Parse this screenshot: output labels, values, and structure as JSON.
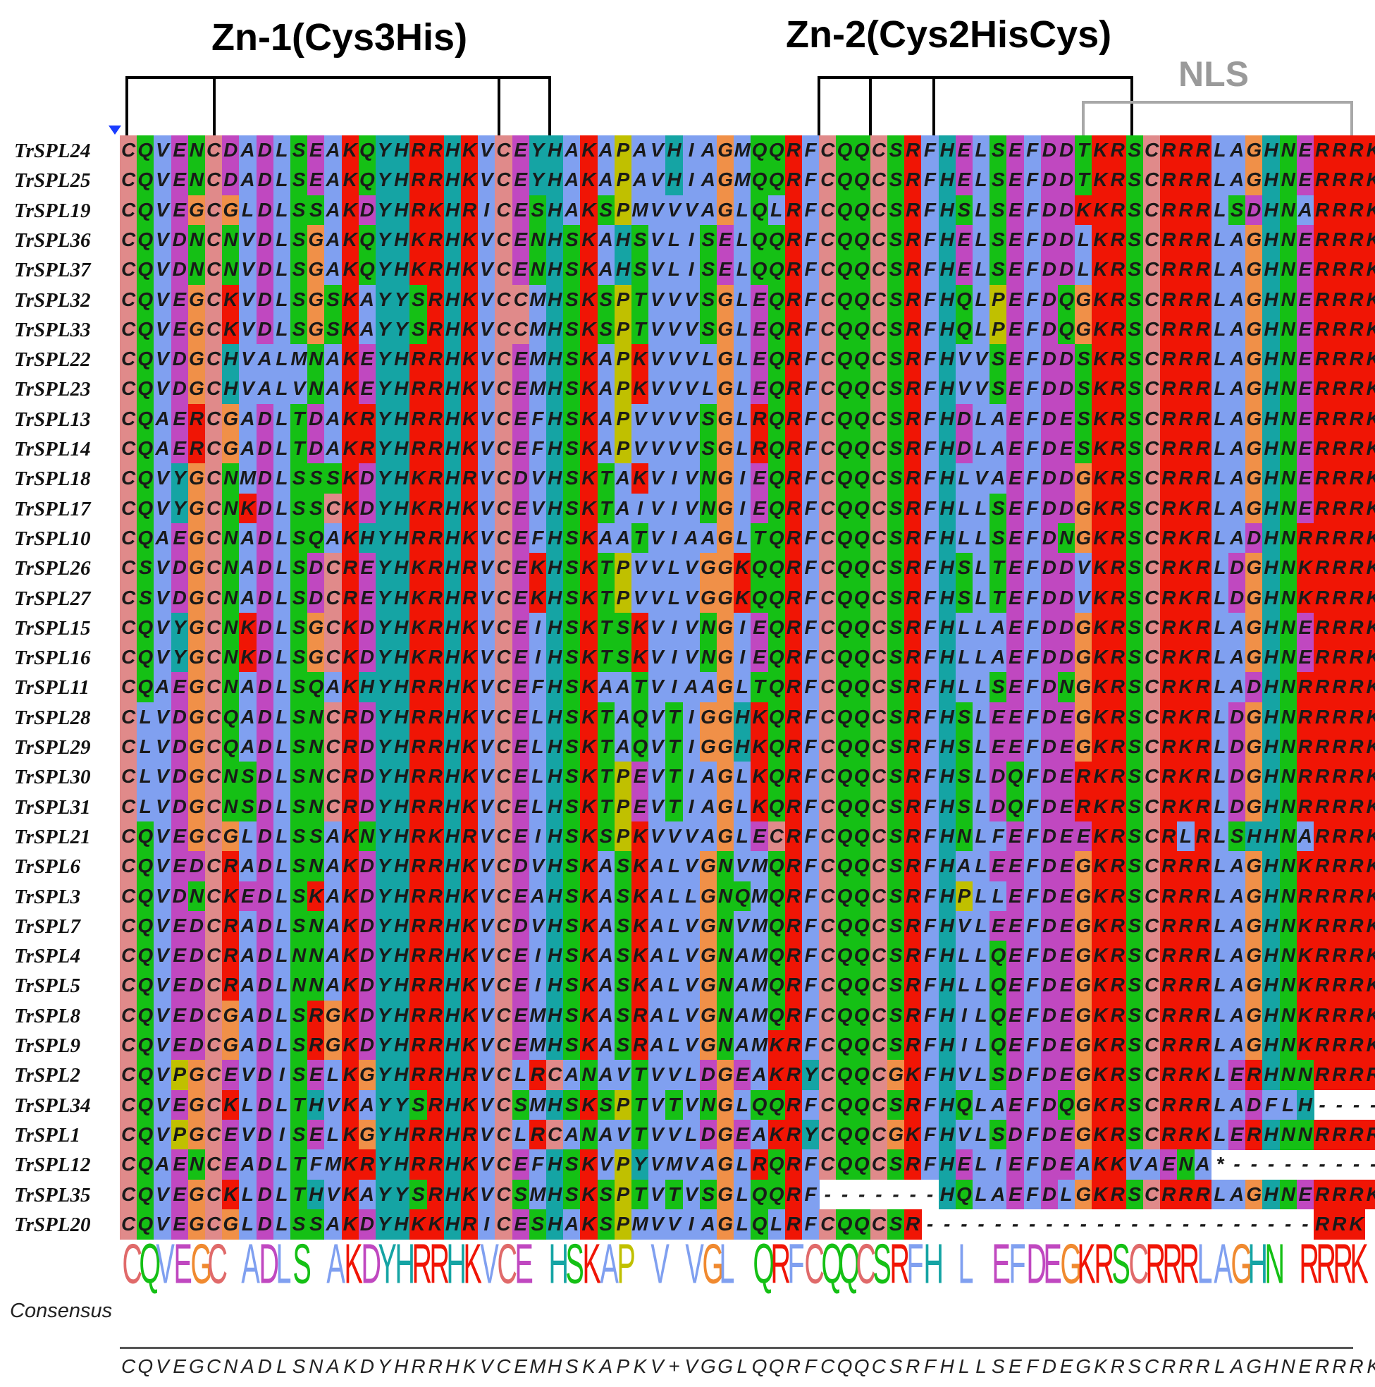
{
  "labels": {
    "zn1": "Zn-1(Cys3His)",
    "zn2": "Zn-2(Cys2HisCys)",
    "nls": "NLS",
    "consensus": "Consensus"
  },
  "sequences": [
    {
      "name": "TrSPL24",
      "seq": "CQVENCDADLSEAKQYHRRHKVCEYHAKAPAVHIAGMQQRFCQQCSRFHELSEFDDTKRSCRRRLAGHNERRRK"
    },
    {
      "name": "TrSPL25",
      "seq": "CQVENCDADLSEAKQYHRRHKVCEYHAKAPAVHIAGMQQRFCQQCSRFHELSEFDDTKRSCRRRLAGHNERRRK"
    },
    {
      "name": "TrSPL19",
      "seq": "CQVEGCGLDLSSAKDYHRKHRICESHAKSPMVVVAGLQLRFCQQCSRFHSLSEFDDKKRSCRRRLSDHNARRRK"
    },
    {
      "name": "TrSPL36",
      "seq": "CQVDNCNVDLSGAKQYHKRHKVCENHSKAHSVLISELQQRFCQQCSRFHELSEFDDLKRSCRRRLAGHNERRRK"
    },
    {
      "name": "TrSPL37",
      "seq": "CQVDNCNVDLSGAKQYHKRHKVCENHSKAHSVLISELQQRFCQQCSRFHELSEFDDLKRSCRRRLAGHNERRRK"
    },
    {
      "name": "TrSPL32",
      "seq": "CQVEGCKVDLSGSKAYYSRHKVCCMHSKSPTVVVSGLEQRFCQQCSRFHQLPEFDQGKRSCRRRLAGHNERRRK"
    },
    {
      "name": "TrSPL33",
      "seq": "CQVEGCKVDLSGSKAYYSRHKVCCMHSKSPTVVVSGLEQRFCQQCSRFHQLPEFDQGKRSCRRRLAGHNERRRK"
    },
    {
      "name": "TrSPL22",
      "seq": "CQVDGCHVALMNAKEYHRRHKVCEMHSKAPKVVVLGLEQRFCQQCSRFHVVSEFDDSKRSCRRRLAGHNERRRK"
    },
    {
      "name": "TrSPL23",
      "seq": "CQVDGCHVALVNAKEYHRRHKVCEMHSKAPKVVVLGLEQRFCQQCSRFHVVSEFDDSKRSCRRRLAGHNERRRK"
    },
    {
      "name": "TrSPL13",
      "seq": "CQAERCGADLTDAKRYHRRHKVCEFHSKAPVVVVSGLRQRFCQQCSRFHDLAEFDESKRSCRRRLAGHNERRRK"
    },
    {
      "name": "TrSPL14",
      "seq": "CQAERCGADLTDAKRYHRRHKVCEFHSKAPVVVVSGLRQRFCQQCSRFHDLAEFDESKRSCRRRLAGHNERRRK"
    },
    {
      "name": "TrSPL18",
      "seq": "CQVYGCNMDLSSSKDYHKRHRVCDVHSKTAKVIVNGIEQRFCQQCSRFHLVAEFDDGKRSCRRRLAGHNERRRK"
    },
    {
      "name": "TrSPL17",
      "seq": "CQVYGCNKDLSSCKDYHKRHKVCEVHSKTAIVIVNGIEQRFCQQCSRFHLLSEFDDGKRSCRKRLAGHNERRRK"
    },
    {
      "name": "TrSPL10",
      "seq": "CQAEGCNADLSQAKHYHRRHKVCEFHSKAATVIAAGLTQRFCQQCSRFHLLSEFDNGKRSCRKRLADHNRRRRK"
    },
    {
      "name": "TrSPL26",
      "seq": "CSVDGCNADLSDCREYHKRHRVCEKHSKTPVVLVGGKQQRFCQQCSRFHSLTEFDDVKRSCRKRLDGHNKRRRK"
    },
    {
      "name": "TrSPL27",
      "seq": "CSVDGCNADLSDCREYHKRHRVCEKHSKTPVVLVGGKQQRFCQQCSRFHSLTEFDDVKRSCRKRLDGHNKRRRK"
    },
    {
      "name": "TrSPL15",
      "seq": "CQVYGCNKDLSGCKDYHKRHKVCEIHSKTSKVIVNGIEQRFCQQCSRFHLLAEFDDGKRSCRKRLAGHNERRRK"
    },
    {
      "name": "TrSPL16",
      "seq": "CQVYGCNKDLSGCKDYHKRHKVCEIHSKTSKVIVNGIEQRFCQQCSRFHLLAEFDDGKRSCRKRLAGHNERRRK"
    },
    {
      "name": "TrSPL11",
      "seq": "CQAEGCNADLSQAKHYHRRHKVCEFHSKAATVIAAGLTQRFCQQCSRFHLLSEFDNGKRSCRKRLADHNRRRRK"
    },
    {
      "name": "TrSPL28",
      "seq": "CLVDGCQADLSNCRDYHRRHKVCELHSKTAQVTIGGHKQRFCQQCSRFHSLEEFDEGKRSCRKRLDGHNRRRRK"
    },
    {
      "name": "TrSPL29",
      "seq": "CLVDGCQADLSNCRDYHRRHKVCELHSKTAQVTIGGHKQRFCQQCSRFHSLEEFDEGKRSCRKRLDGHNRRRRK"
    },
    {
      "name": "TrSPL30",
      "seq": "CLVDGCNSDLSNCRDYHRRHKVCELHSKTPEVTIAGLKQRFCQQCSRFHSLDQFDERKRSCRKRLDGHNRRRRK"
    },
    {
      "name": "TrSPL31",
      "seq": "CLVDGCNSDLSNCRDYHRRHKVCELHSKTPEVTIAGLKQRFCQQCSRFHSLDQFDERKRSCRKRLDGHNRRRRK"
    },
    {
      "name": "TrSPL21",
      "seq": "CQVEGCGLDLSSAKNYHRKHRVCEIHSKSPKVVVAGLECRFCQQCSRFHNLFEFDEEKRSCRLRLSHHNARRRK"
    },
    {
      "name": "TrSPL6",
      "seq": "CQVEDCRADLSNAKDYHRRHKVCDVHSKASKALVGNVMQRFCQQCSRFHALEEFDEGKRSCRRRLAGHNKRRRK"
    },
    {
      "name": "TrSPL3",
      "seq": "CQVDNCKEDLSKAKDYHRRHKVCEAHSKASKALLGNQMQRFCQQCSRFHPLLEFDEGKRSCRRRLAGHNRRRRK"
    },
    {
      "name": "TrSPL7",
      "seq": "CQVEDCRADLSNAKDYHRRHKVCDVHSKASKALVGNVMQRFCQQCSRFHVLEEFDEGKRSCRRRLAGHNKRRRK"
    },
    {
      "name": "TrSPL4",
      "seq": "CQVEDCRADLNNAKDYHRRHKVCEIHSKASKALVGNAMQRFCQQCSRFHLLQEFDEGKRSCRRRLAGHNKRRRK"
    },
    {
      "name": "TrSPL5",
      "seq": "CQVEDCRADLNNAKDYHRRHKVCEIHSKASKALVGNAMQRFCQQCSRFHLLQEFDEGKRSCRRRLAGHNKRRRK"
    },
    {
      "name": "TrSPL8",
      "seq": "CQVEDCGADLSRGKDYHRRHKVCEMHSKASRALVGNAMQRFCQQCSRFHILQEFDEGKRSCRRRLAGHNKRRRK"
    },
    {
      "name": "TrSPL9",
      "seq": "CQVEDCGADLSRGKDYHRRHKVCEMHSKASRALVGNAMKRFCQQCSRFHILQEFDEGKRSCRRRLAGHNKRRRK"
    },
    {
      "name": "TrSPL2",
      "seq": "CQVPGCEVDISELKGYHRRHRVCLRCANAVTVVLDGEAKRYCQQCGKFHVLSDFDEGKRSCRRKLERHNNRRRR"
    },
    {
      "name": "TrSPL34",
      "seq": "CQVEGCKLDLTHVKAYYSRHKVCSMHSKSPTVTVNGLQQRFCQQCSRFHQLAEFDQGKRSCRRRLADFLH----"
    },
    {
      "name": "TrSPL1",
      "seq": "CQVPGCEVDISELKGYHRRHRVCLRCANAVTVVLDGEAKRYCQQCGKFHVLSDFDEGKRSCRRKLERHNNRRRR"
    },
    {
      "name": "TrSPL12",
      "seq": "CQAENCEADLTFMKRYHRRHKVCEFHSKVPYVMVAGLRQRFCQQCSRFHELIEFDEAKKVAENA*---------"
    },
    {
      "name": "TrSPL35",
      "seq": "CQVEGCKLDLTHVKAYYSRHKVCSMHSKSPTVTVSGLQQRF-------HQLAEFDLGKRSCRRRLAGHNERRRK"
    },
    {
      "name": "TrSPL20",
      "seq": "CQVEGCGLDLSSAKDYHKKHRICESHAKSPMVVIAGLQLRFCQQCSR-----------------------RRK"
    }
  ],
  "consensus_logo": "CQVEGC ADLS AKDYHRRHKVCE HSKAP V VGL QRFCQQCSRFH L EFDEGKRSCRRRLAGHN RRRK",
  "consensus_seq": "CQVEGCNADLSNAKDYHRRHKVCEMHSKAPKV+VGGLQQRFCQQCSRFHLLSEFDEGKRSCRRRLAGHNERRRK",
  "colors": {
    "C": "#e08a8a",
    "hydrophobic": "#80a0f0",
    "acidic": "#c048c0",
    "basic": "#f01505",
    "polar": "#15c015",
    "aromatic": "#15a4a4",
    "G": "#f09048",
    "P": "#c0c000",
    "text": "#1a1a1a",
    "bracket": "#000000",
    "nls_bracket": "#a8a8a8",
    "marker": "#1a3cff"
  }
}
